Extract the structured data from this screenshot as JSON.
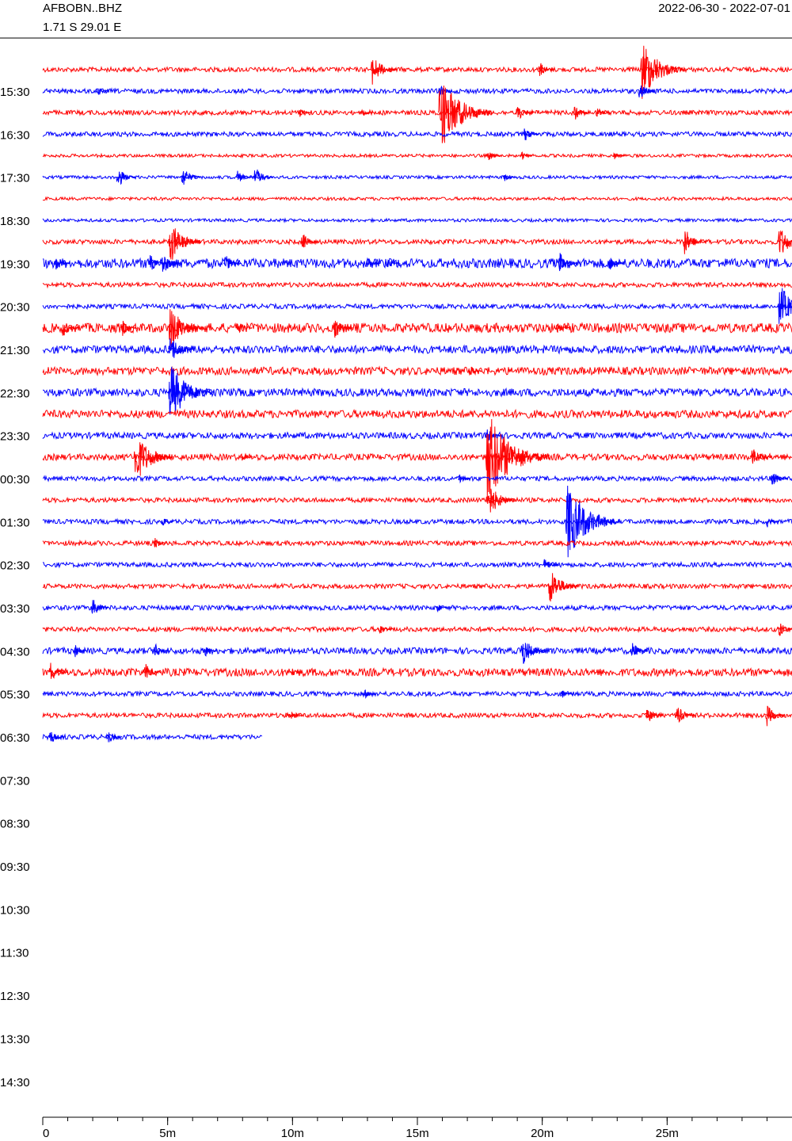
{
  "chart_data": {
    "type": "helicorder",
    "title": "AFBOBN..BHZ",
    "subtitle": "1.71 S 29.01 E",
    "date_range": "2022-06-30 - 2022-07-01",
    "xlim": [
      0,
      30
    ],
    "xticks": [
      0,
      {
        "value": 5,
        "label": "5m"
      },
      {
        "value": 10,
        "label": "10m"
      },
      {
        "value": 15,
        "label": "15m"
      },
      {
        "value": 20,
        "label": "20m"
      },
      {
        "value": 25,
        "label": "25m"
      }
    ],
    "row_labels": [
      null,
      "15:30",
      null,
      "16:30",
      null,
      "17:30",
      null,
      "18:30",
      null,
      "19:30",
      null,
      "20:30",
      null,
      "21:30",
      null,
      "22:30",
      null,
      "23:30",
      null,
      "00:30",
      null,
      "01:30",
      null,
      "02:30",
      null,
      "03:30",
      null,
      "04:30",
      null,
      "05:30",
      null,
      "06:30",
      null,
      "07:30",
      null,
      "08:30",
      null,
      "09:30",
      null,
      "10:30",
      null,
      "11:30",
      null,
      "12:30",
      null,
      "13:30",
      null,
      "14:30"
    ],
    "traces": [
      {
        "color": "#ff0000",
        "end": 30,
        "noise": 3,
        "events": [
          {
            "t": 13.2,
            "amp": 20
          },
          {
            "t": 19.9,
            "amp": 10
          },
          {
            "t": 24,
            "amp": 40
          }
        ]
      },
      {
        "color": "#0000ff",
        "end": 30,
        "noise": 3,
        "events": [
          {
            "t": 2.2,
            "amp": 6
          },
          {
            "t": 15.9,
            "amp": 8
          },
          {
            "t": 23.9,
            "amp": 12
          }
        ]
      },
      {
        "color": "#ff0000",
        "end": 30,
        "noise": 3,
        "events": [
          {
            "t": 10.3,
            "amp": 6
          },
          {
            "t": 12.8,
            "amp": 6
          },
          {
            "t": 15.9,
            "amp": 50
          },
          {
            "t": 19,
            "amp": 12
          },
          {
            "t": 21.3,
            "amp": 10
          },
          {
            "t": 22.2,
            "amp": 8
          }
        ]
      },
      {
        "color": "#0000ff",
        "end": 30,
        "noise": 3,
        "events": [
          {
            "t": 19.3,
            "amp": 10
          }
        ]
      },
      {
        "color": "#ff0000",
        "end": 30,
        "noise": 2,
        "events": [
          {
            "t": 17.8,
            "amp": 8
          },
          {
            "t": 19.2,
            "amp": 6
          },
          {
            "t": 22.9,
            "amp": 6
          }
        ]
      },
      {
        "color": "#0000ff",
        "end": 30,
        "noise": 2,
        "events": [
          {
            "t": 3,
            "amp": 14
          },
          {
            "t": 5.6,
            "amp": 14
          },
          {
            "t": 7.8,
            "amp": 10
          },
          {
            "t": 8.5,
            "amp": 14
          },
          {
            "t": 18.5,
            "amp": 6
          }
        ]
      },
      {
        "color": "#ff0000",
        "end": 30,
        "noise": 2,
        "events": []
      },
      {
        "color": "#0000ff",
        "end": 30,
        "noise": 2,
        "events": []
      },
      {
        "color": "#ff0000",
        "end": 30,
        "noise": 3,
        "events": [
          {
            "t": 5.1,
            "amp": 28
          },
          {
            "t": 10.4,
            "amp": 12
          },
          {
            "t": 25.7,
            "amp": 18
          },
          {
            "t": 29.5,
            "amp": 22
          }
        ]
      },
      {
        "color": "#0000ff",
        "end": 30,
        "noise": 6,
        "events": [
          {
            "t": 0.5,
            "amp": 10
          },
          {
            "t": 4.3,
            "amp": 12
          },
          {
            "t": 4.8,
            "amp": 15
          },
          {
            "t": 7.3,
            "amp": 12
          },
          {
            "t": 13,
            "amp": 8
          },
          {
            "t": 13.8,
            "amp": 8
          },
          {
            "t": 20.7,
            "amp": 14
          },
          {
            "t": 22.7,
            "amp": 10
          }
        ]
      },
      {
        "color": "#ff0000",
        "end": 30,
        "noise": 3,
        "events": []
      },
      {
        "color": "#0000ff",
        "end": 30,
        "noise": 3,
        "events": [
          {
            "t": 29.5,
            "amp": 30
          }
        ]
      },
      {
        "color": "#ff0000",
        "end": 30,
        "noise": 6,
        "events": [
          {
            "t": 0.8,
            "amp": 12
          },
          {
            "t": 3.2,
            "amp": 10
          },
          {
            "t": 5.1,
            "amp": 30
          },
          {
            "t": 7.8,
            "amp": 10
          },
          {
            "t": 11.7,
            "amp": 14
          },
          {
            "t": 20.6,
            "amp": 8
          }
        ]
      },
      {
        "color": "#0000ff",
        "end": 30,
        "noise": 5,
        "events": [
          {
            "t": 5.1,
            "amp": 20
          }
        ]
      },
      {
        "color": "#ff0000",
        "end": 30,
        "noise": 5,
        "events": [
          {
            "t": 17.1,
            "amp": 8
          }
        ]
      },
      {
        "color": "#0000ff",
        "end": 30,
        "noise": 5,
        "events": [
          {
            "t": 5.1,
            "amp": 40
          }
        ]
      },
      {
        "color": "#ff0000",
        "end": 30,
        "noise": 5,
        "events": []
      },
      {
        "color": "#0000ff",
        "end": 30,
        "noise": 4,
        "events": [
          {
            "t": 17.8,
            "amp": 10
          }
        ]
      },
      {
        "color": "#ff0000",
        "end": 30,
        "noise": 4,
        "events": [
          {
            "t": 3.7,
            "amp": 35
          },
          {
            "t": 8,
            "amp": 6
          },
          {
            "t": 17.8,
            "amp": 60
          },
          {
            "t": 28.4,
            "amp": 15
          }
        ]
      },
      {
        "color": "#0000ff",
        "end": 30,
        "noise": 3,
        "events": [
          {
            "t": 16.7,
            "amp": 6
          },
          {
            "t": 29.2,
            "amp": 12
          }
        ]
      },
      {
        "color": "#ff0000",
        "end": 30,
        "noise": 3,
        "events": [
          {
            "t": 17.8,
            "amp": 25
          }
        ]
      },
      {
        "color": "#0000ff",
        "end": 30,
        "noise": 3,
        "events": [
          {
            "t": 4.8,
            "amp": 6
          },
          {
            "t": 21,
            "amp": 50
          },
          {
            "t": 29,
            "amp": 8
          }
        ]
      },
      {
        "color": "#ff0000",
        "end": 30,
        "noise": 3,
        "events": [
          {
            "t": 4.5,
            "amp": 8
          }
        ]
      },
      {
        "color": "#0000ff",
        "end": 30,
        "noise": 3,
        "events": [
          {
            "t": 20.1,
            "amp": 10
          }
        ]
      },
      {
        "color": "#ff0000",
        "end": 30,
        "noise": 3,
        "events": [
          {
            "t": 20.3,
            "amp": 25
          }
        ]
      },
      {
        "color": "#0000ff",
        "end": 30,
        "noise": 3,
        "events": [
          {
            "t": 2,
            "amp": 12
          },
          {
            "t": 15.8,
            "amp": 6
          }
        ]
      },
      {
        "color": "#ff0000",
        "end": 30,
        "noise": 3,
        "events": [
          {
            "t": 13.5,
            "amp": 8
          },
          {
            "t": 29.5,
            "amp": 10
          }
        ]
      },
      {
        "color": "#0000ff",
        "end": 30,
        "noise": 4,
        "events": [
          {
            "t": 1.3,
            "amp": 8
          },
          {
            "t": 4.5,
            "amp": 10
          },
          {
            "t": 6.5,
            "amp": 8
          },
          {
            "t": 19.2,
            "amp": 20
          },
          {
            "t": 23.6,
            "amp": 12
          }
        ]
      },
      {
        "color": "#ff0000",
        "end": 30,
        "noise": 5,
        "events": [
          {
            "t": 0.3,
            "amp": 14
          },
          {
            "t": 4.1,
            "amp": 12
          },
          {
            "t": 10,
            "amp": 6
          }
        ]
      },
      {
        "color": "#0000ff",
        "end": 30,
        "noise": 3,
        "events": [
          {
            "t": 12.9,
            "amp": 6
          },
          {
            "t": 20.8,
            "amp": 6
          }
        ]
      },
      {
        "color": "#ff0000",
        "end": 30,
        "noise": 3,
        "events": [
          {
            "t": 9.8,
            "amp": 10
          },
          {
            "t": 24.2,
            "amp": 12
          },
          {
            "t": 25.4,
            "amp": 14
          },
          {
            "t": 29,
            "amp": 14
          }
        ]
      },
      {
        "color": "#0000ff",
        "end": 8.8,
        "noise": 3,
        "events": [
          {
            "t": 0.3,
            "amp": 10
          },
          {
            "t": 2.6,
            "amp": 10
          }
        ]
      }
    ]
  }
}
